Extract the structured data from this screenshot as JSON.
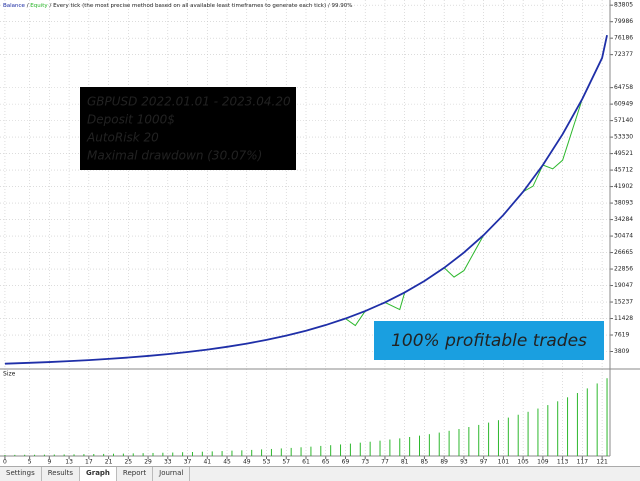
{
  "chart_data": {
    "type": "line",
    "separator": "/",
    "header_info": "Every tick (the most precise method based on all available least timeframes to generate each tick)",
    "quality": "99.90%",
    "series": [
      {
        "name": "Balance",
        "color": "#1f2fa8",
        "x": [
          0,
          5,
          9,
          13,
          17,
          21,
          25,
          29,
          33,
          37,
          41,
          45,
          49,
          53,
          57,
          61,
          65,
          69,
          73,
          77,
          81,
          85,
          89,
          93,
          97,
          101,
          105,
          109,
          113,
          117,
          121,
          122
        ],
        "values": [
          1000,
          1193,
          1374,
          1582,
          1822,
          2099,
          2417,
          2783,
          3206,
          3692,
          4252,
          4897,
          5639,
          6494,
          7479,
          8614,
          9920,
          11425,
          13157,
          15153,
          17451,
          20097,
          23145,
          26655,
          30698,
          35352,
          40714,
          46886,
          53999,
          62185,
          71615,
          76860
        ]
      },
      {
        "name": "Equity",
        "color": "#2db82d",
        "x": [
          0,
          5,
          9,
          13,
          17,
          21,
          25,
          29,
          33,
          37,
          41,
          45,
          49,
          53,
          57,
          61,
          65,
          69,
          71,
          73,
          77,
          80,
          81,
          85,
          89,
          91,
          93,
          97,
          101,
          105,
          107,
          109,
          111,
          113,
          117,
          121,
          122
        ],
        "values": [
          1000,
          1193,
          1374,
          1582,
          1822,
          2099,
          2417,
          2783,
          3206,
          3692,
          4252,
          4897,
          5639,
          6494,
          7479,
          8614,
          9920,
          11425,
          9800,
          13157,
          15153,
          13500,
          17451,
          20097,
          23145,
          21000,
          22500,
          30698,
          35352,
          40714,
          42000,
          46886,
          46000,
          48000,
          62185,
          71615,
          76860
        ]
      }
    ],
    "xlim": [
      -1,
      122.6
    ],
    "xticks": [
      0,
      5,
      9,
      13,
      17,
      21,
      25,
      29,
      33,
      37,
      41,
      45,
      49,
      53,
      57,
      61,
      65,
      69,
      73,
      77,
      81,
      85,
      89,
      93,
      97,
      101,
      105,
      109,
      113,
      117,
      121
    ],
    "ylim": [
      0,
      85000
    ],
    "yticks": [
      83805,
      79986,
      76186,
      72377,
      64758,
      60949,
      57140,
      53330,
      49521,
      45712,
      41902,
      38093,
      34284,
      30474,
      26665,
      22856,
      19047,
      15237,
      11428,
      7619,
      3809
    ],
    "grid": true,
    "info_box": [
      "GBPUSD 2022.01.01 - 2023.04.20",
      "Deposit 1000$",
      "AutoRisk 20",
      "Maximal drawdown (30.07%)"
    ],
    "banner": "100% profitable trades",
    "size_panel": {
      "label": "Size",
      "color": "#2db82d",
      "ylim": [
        0,
        8
      ],
      "x": [
        0,
        2,
        4,
        6,
        8,
        10,
        12,
        14,
        16,
        18,
        20,
        22,
        24,
        26,
        28,
        30,
        32,
        34,
        36,
        38,
        40,
        42,
        44,
        46,
        48,
        50,
        52,
        54,
        56,
        58,
        60,
        62,
        64,
        66,
        68,
        70,
        72,
        74,
        76,
        78,
        80,
        82,
        84,
        86,
        88,
        90,
        92,
        94,
        96,
        98,
        100,
        102,
        104,
        106,
        108,
        110,
        112,
        114,
        116,
        118,
        120,
        122
      ],
      "values": [
        0.1,
        0.11,
        0.12,
        0.12,
        0.13,
        0.14,
        0.15,
        0.16,
        0.18,
        0.19,
        0.2,
        0.22,
        0.23,
        0.25,
        0.27,
        0.29,
        0.31,
        0.33,
        0.36,
        0.38,
        0.41,
        0.44,
        0.47,
        0.51,
        0.54,
        0.58,
        0.63,
        0.67,
        0.72,
        0.77,
        0.83,
        0.89,
        0.96,
        1.03,
        1.1,
        1.18,
        1.27,
        1.36,
        1.46,
        1.57,
        1.68,
        1.81,
        1.94,
        2.08,
        2.23,
        2.4,
        2.57,
        2.76,
        2.96,
        3.18,
        3.41,
        3.66,
        3.93,
        4.21,
        4.52,
        4.85,
        5.21,
        5.59,
        6.0,
        6.44,
        6.91,
        7.41
      ]
    }
  },
  "tabs": [
    "Settings",
    "Results",
    "Graph",
    "Report",
    "Journal"
  ]
}
